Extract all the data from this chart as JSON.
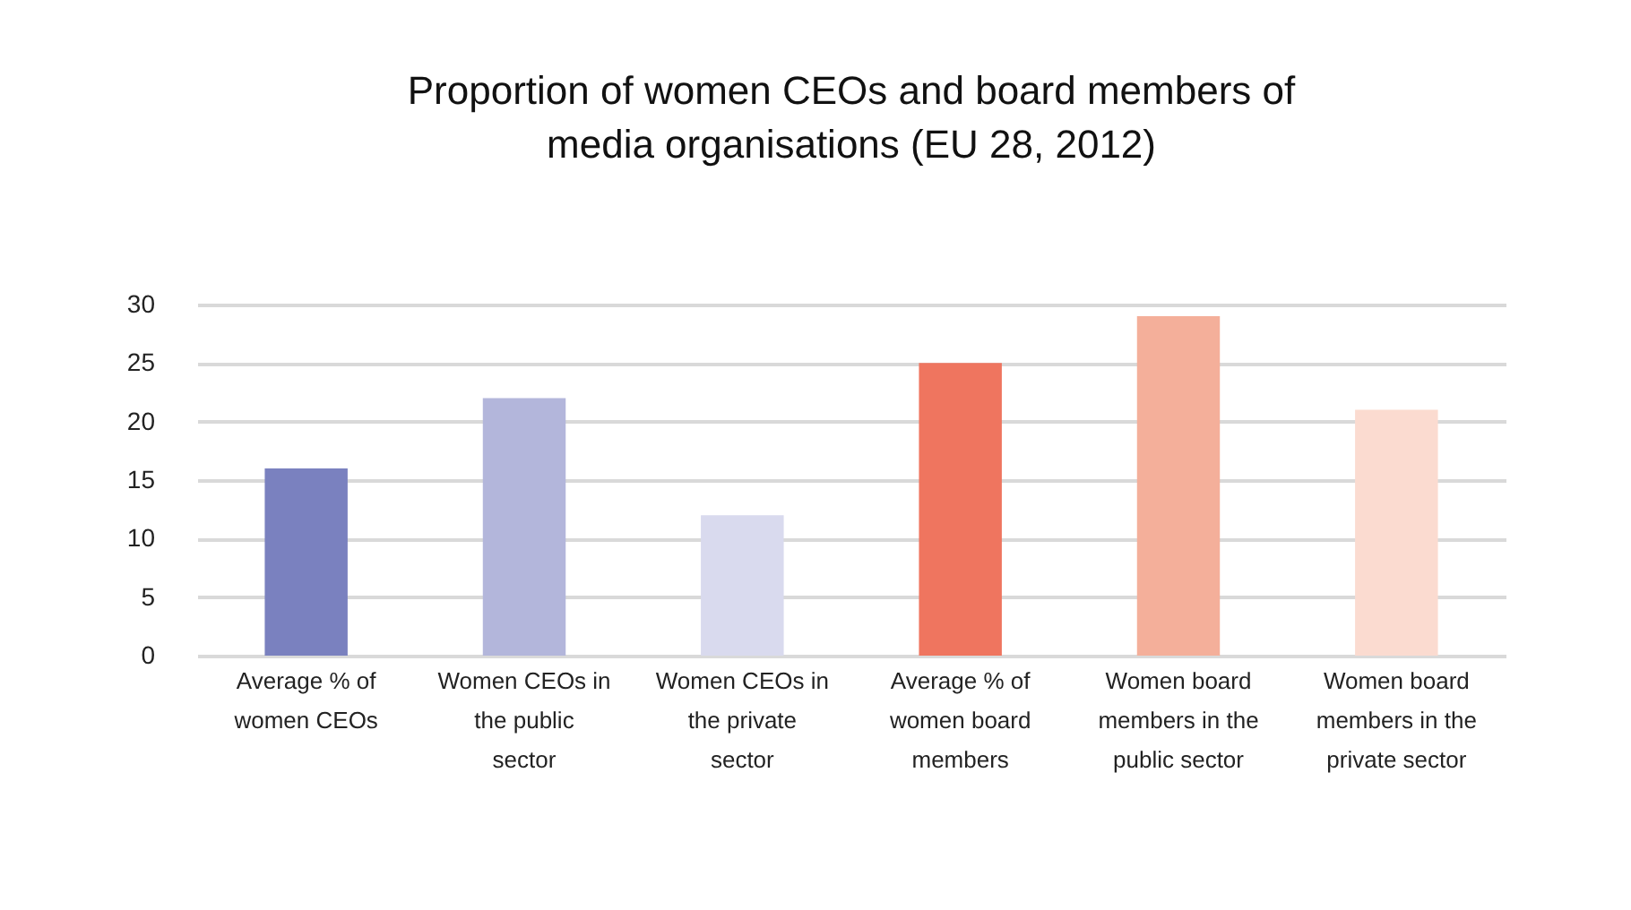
{
  "chart_data": {
    "type": "bar",
    "title": "Proportion of women CEOs and board members of media organisations (EU 28, 2012)",
    "categories": [
      "Average % of women CEOs",
      "Women CEOs in the public sector",
      "Women CEOs in the private sector",
      "Average % of women board members",
      "Women board members in the public sector",
      "Women board members in the private sector"
    ],
    "values": [
      16,
      22,
      12,
      25,
      29,
      21
    ],
    "colors": [
      "#7a81bf",
      "#b3b6db",
      "#d9daee",
      "#ef755f",
      "#f4af9a",
      "#fbdbd0"
    ],
    "ylim": [
      0,
      30
    ],
    "yticks": [
      0,
      5,
      10,
      15,
      20,
      25,
      30
    ],
    "grid": "y"
  }
}
